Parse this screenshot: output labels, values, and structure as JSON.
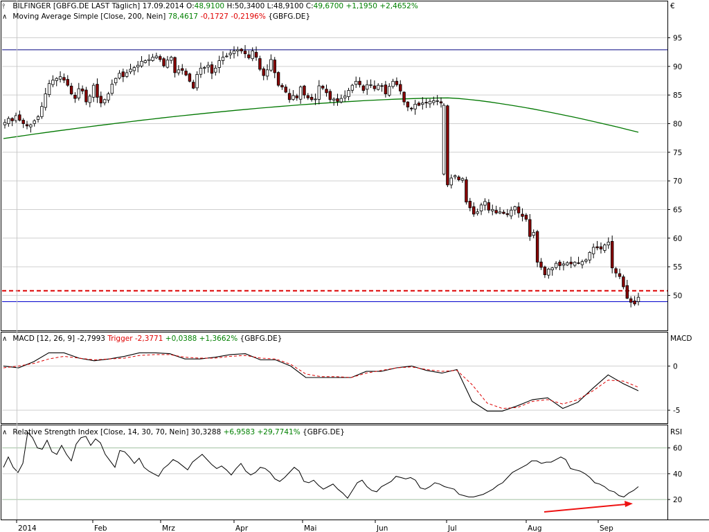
{
  "price_header": {
    "title": "BILFINGER [GBFG.DE LAST Täglich] 17.09.2014",
    "o_label": "O:",
    "o_val": "48,9100",
    "h_label": "H:",
    "h_val": "50,3400",
    "l_label": "L:",
    "l_val": "48,9100",
    "c_label": "C:",
    "c_val": "49,6700",
    "chg": "+1,1950",
    "chg_pct": "+2,4652%"
  },
  "ma_header": {
    "title": "Moving Average Simple [Close, 200, Nein]",
    "val": "78,4617",
    "chg": "-0,1727",
    "chg_pct": "-0,2196%",
    "sym": "{GBFG.DE}"
  },
  "macd_header": {
    "title": "MACD [12, 26, 9]",
    "val": "-2,7993",
    "trigger_label": "Trigger",
    "trigger_val": "-2,3771",
    "chg": "+0,0388",
    "chg_pct": "+1,3662%",
    "sym": "{GBFG.DE}"
  },
  "rsi_header": {
    "title": "Relative Strength Index [Close, 14, 30, 70, Nein]",
    "val": "30,3288",
    "chg": "+6,9583",
    "chg_pct": "+29,7741%",
    "sym": "{GBFG.DE}"
  },
  "axis_units": {
    "price": "€",
    "macd": "MACD",
    "rsi": "RSI"
  },
  "chart_data": [
    {
      "type": "candlestick",
      "name": "BILFINGER GBFG.DE",
      "x_labels": [
        "2014",
        "Feb",
        "Mrz",
        "Apr",
        "Mai",
        "Jun",
        "Jul",
        "Aug",
        "Sep"
      ],
      "y_ticks": [
        50,
        55,
        60,
        65,
        70,
        75,
        80,
        85,
        90,
        95
      ],
      "ylim": [
        44,
        97
      ],
      "close": [
        80.2,
        80.9,
        80.5,
        81.4,
        80.6,
        80.0,
        79.6,
        79.8,
        80.5,
        81.2,
        83.0,
        85.2,
        87.0,
        87.6,
        87.9,
        88.2,
        87.6,
        86.7,
        85.2,
        84.4,
        86.1,
        85.7,
        83.8,
        84.8,
        86.7,
        84.6,
        83.6,
        84.2,
        85.2,
        86.9,
        87.9,
        88.8,
        88.2,
        88.9,
        89.5,
        89.8,
        90.2,
        90.9,
        91.0,
        91.2,
        91.6,
        91.8,
        91.2,
        90.1,
        91.1,
        91.6,
        88.9,
        89.4,
        89.3,
        88.5,
        87.4,
        86.2,
        88.6,
        89.7,
        89.8,
        90.2,
        88.8,
        89.7,
        91.0,
        91.6,
        91.8,
        92.3,
        92.7,
        92.9,
        92.7,
        92.2,
        91.5,
        92.7,
        91.6,
        89.5,
        88.4,
        89.4,
        91.2,
        88.9,
        86.7,
        86.4,
        85.5,
        84.2,
        84.9,
        84.5,
        86.4,
        85.0,
        84.5,
        84.2,
        84.3,
        86.6,
        86.2,
        85.4,
        84.2,
        84.3,
        83.9,
        84.4,
        84.8,
        85.8,
        86.7,
        87.4,
        86.8,
        85.8,
        86.8,
        86.8,
        86.1,
        86.7,
        86.6,
        85.2,
        86.5,
        87.4,
        86.8,
        85.7,
        83.8,
        82.9,
        82.6,
        83.4,
        83.2,
        83.6,
        83.7,
        83.9,
        84.0,
        84.0,
        83.6,
        83.2,
        69.3,
        70.5,
        70.9,
        70.2,
        70.4,
        66.3,
        65.3,
        64.2,
        64.6,
        65.8,
        66.4,
        64.9,
        65.0,
        64.4,
        64.6,
        64.3,
        64.1,
        64.9,
        65.5,
        64.4,
        63.8,
        63.3,
        60.3,
        61.0,
        55.8,
        54.9,
        53.6,
        54.6,
        54.8,
        55.6,
        55.2,
        55.5,
        55.7,
        55.5,
        55.8,
        55.6,
        55.9,
        56.2,
        57.5,
        58.4,
        58.3,
        58.1,
        58.8,
        59.3,
        54.8,
        53.9,
        53.3,
        51.5,
        49.5,
        48.8,
        48.5,
        49.67
      ],
      "ma200_range": [
        77.4,
        84.5,
        78.5
      ],
      "support_lines": [
        50.8,
        48.9
      ],
      "resistance_line": 92.9
    },
    {
      "type": "line",
      "name": "MACD [12, 26, 9]",
      "y_ticks": [
        0,
        -5
      ],
      "ylim": [
        -6.4,
        3.8
      ],
      "series": [
        {
          "name": "MACD",
          "values": [
            0.0,
            -0.2,
            0.5,
            1.5,
            1.5,
            0.9,
            0.6,
            0.8,
            1.1,
            1.5,
            1.5,
            1.4,
            0.8,
            0.8,
            1.0,
            1.3,
            1.4,
            0.7,
            0.7,
            0.0,
            -1.3,
            -1.3,
            -1.3,
            -1.3,
            -0.6,
            -0.6,
            -0.2,
            0.0,
            -0.5,
            -0.8,
            -0.4,
            -4.0,
            -5.1,
            -5.1,
            -4.5,
            -3.8,
            -3.6,
            -4.8,
            -4.1,
            -2.5,
            -1.0,
            -2.0,
            -2.8
          ]
        },
        {
          "name": "Trigger",
          "values": [
            -0.2,
            0.0,
            0.3,
            0.8,
            1.1,
            0.9,
            0.7,
            0.8,
            0.9,
            1.2,
            1.3,
            1.3,
            1.0,
            0.9,
            0.9,
            1.1,
            1.2,
            0.9,
            0.8,
            0.2,
            -0.9,
            -1.2,
            -1.2,
            -1.3,
            -0.8,
            -0.5,
            -0.2,
            -0.1,
            -0.4,
            -0.6,
            -0.5,
            -2.1,
            -4.2,
            -4.8,
            -4.7,
            -4.0,
            -3.8,
            -4.3,
            -3.8,
            -2.8,
            -1.6,
            -1.7,
            -2.4
          ]
        }
      ]
    },
    {
      "type": "line",
      "name": "Relative Strength Index",
      "y_ticks": [
        20,
        40,
        60
      ],
      "ylim": [
        5,
        77
      ],
      "series": [
        {
          "name": "RSI",
          "values": [
            45,
            53,
            45,
            41,
            48,
            72,
            68,
            60,
            59,
            66,
            57,
            55,
            62,
            55,
            50,
            63,
            68,
            69,
            62,
            67,
            64,
            55,
            50,
            45,
            58,
            57,
            53,
            48,
            52,
            45,
            42,
            40,
            38,
            44,
            47,
            51,
            49,
            46,
            43,
            49,
            52,
            55,
            51,
            47,
            44,
            46,
            43,
            39,
            44,
            48,
            42,
            39,
            41,
            45,
            44,
            41,
            36,
            34,
            37,
            41,
            45,
            42,
            34,
            33,
            35,
            31,
            28,
            30,
            32,
            28,
            25,
            21,
            27,
            33,
            35,
            30,
            27,
            26,
            30,
            32,
            34,
            38,
            37,
            36,
            37,
            35,
            29,
            28,
            30,
            33,
            32,
            30,
            29,
            28,
            24,
            23,
            22,
            22,
            23,
            24,
            26,
            28,
            31,
            33,
            37,
            41,
            43,
            45,
            47,
            50,
            50,
            48,
            49,
            49,
            51,
            53,
            51,
            44,
            43,
            42,
            40,
            37,
            33,
            32,
            30,
            27,
            26,
            23,
            22,
            25,
            27,
            30
          ]
        }
      ]
    }
  ],
  "colors": {
    "bull": "#ffffff",
    "bear": "#8b0000",
    "candle_outline": "#000000",
    "ma200": "#007700",
    "support_dashed": "#dd0000",
    "support_solid": "#0000cc",
    "resistance": "#000080",
    "macd": "#000000",
    "trigger": "#dd0000",
    "rsi": "#000000",
    "arrow": "#ee1111",
    "grid": "#a0c0a0"
  }
}
